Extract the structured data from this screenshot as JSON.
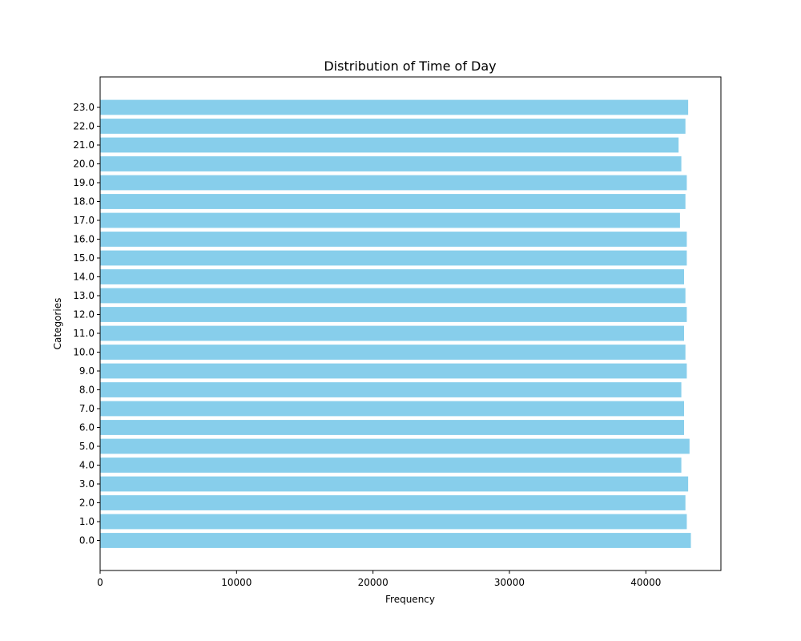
{
  "chart_data": {
    "type": "bar",
    "orientation": "horizontal",
    "title": "Distribution of Time of Day",
    "xlabel": "Frequency",
    "ylabel": "Categories",
    "categories": [
      "0.0",
      "1.0",
      "2.0",
      "3.0",
      "4.0",
      "5.0",
      "6.0",
      "7.0",
      "8.0",
      "9.0",
      "10.0",
      "11.0",
      "12.0",
      "13.0",
      "14.0",
      "15.0",
      "16.0",
      "17.0",
      "18.0",
      "19.0",
      "20.0",
      "21.0",
      "22.0",
      "23.0"
    ],
    "values": [
      43300,
      43000,
      42900,
      43100,
      42600,
      43200,
      42800,
      42800,
      42600,
      43000,
      42900,
      42800,
      43000,
      42900,
      42800,
      43000,
      43000,
      42500,
      42900,
      43000,
      42600,
      42400,
      42900,
      43100
    ],
    "xlim": [
      0,
      45500
    ],
    "xticks": [
      0,
      10000,
      20000,
      30000,
      40000
    ],
    "bar_color": "#87ceeb",
    "grid": false,
    "legend": "none"
  }
}
